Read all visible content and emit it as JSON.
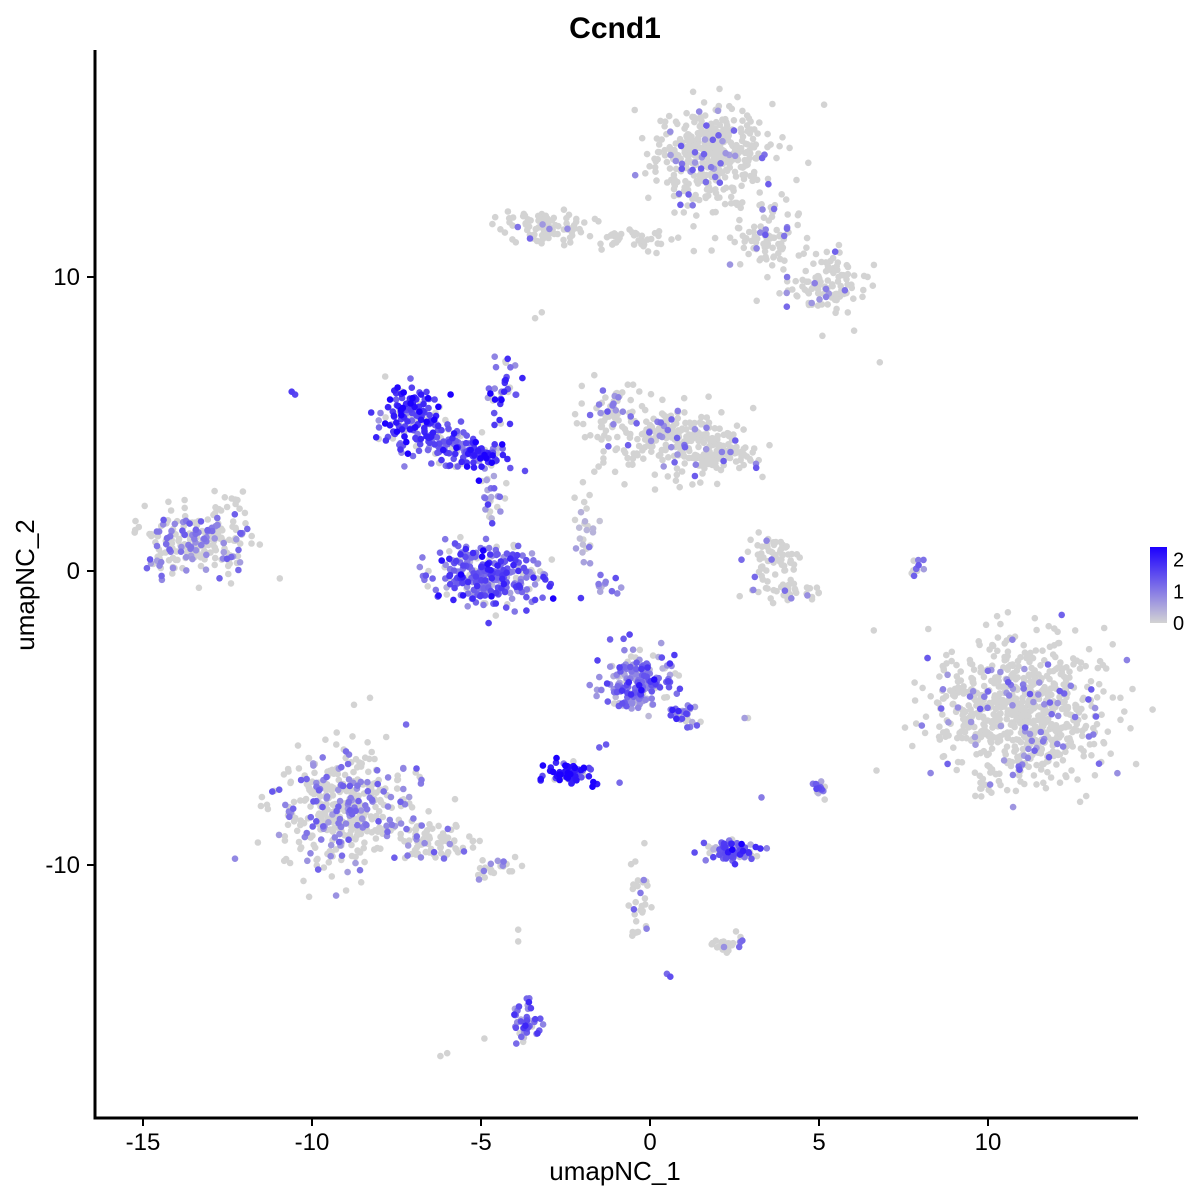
{
  "chart_data": {
    "type": "scatter",
    "title": "Ccnd1",
    "xlabel": "umapNC_1",
    "ylabel": "umapNC_2",
    "xlim": [
      -16.5,
      14.5
    ],
    "ylim": [
      -18.5,
      17.5
    ],
    "x_ticks": [
      -15,
      -10,
      -5,
      0,
      5,
      10
    ],
    "x_tick_labels": [
      "-15",
      "-10",
      "-5",
      "0",
      "5",
      "10"
    ],
    "y_ticks": [
      -10,
      0,
      10
    ],
    "y_tick_labels": [
      "-10",
      "0",
      "10"
    ],
    "grid": false,
    "legend": {
      "placement": "right",
      "type": "colorbar",
      "title": "",
      "min": 0,
      "max": 2.4,
      "ticks": [
        0,
        1,
        2
      ],
      "tick_labels": [
        "0",
        "1",
        "2"
      ]
    },
    "colors": {
      "low": "#d3d3d3",
      "high": "#1c00ff"
    },
    "point_count_note": "clusters sampled",
    "clusters": [
      {
        "cx": 1.8,
        "cy": 14.2,
        "rx": 1.6,
        "ry": 1.5,
        "n": 420,
        "expr": 0.03
      },
      {
        "cx": 3.3,
        "cy": 11.3,
        "rx": 1.2,
        "ry": 1.0,
        "n": 90,
        "expr": 0.03
      },
      {
        "cx": 5.2,
        "cy": 9.8,
        "rx": 1.1,
        "ry": 1.0,
        "n": 110,
        "expr": 0.04
      },
      {
        "cx": -3.1,
        "cy": 11.7,
        "rx": 1.2,
        "ry": 0.5,
        "n": 90,
        "expr": 0.02
      },
      {
        "cx": -0.5,
        "cy": 11.3,
        "rx": 1.1,
        "ry": 0.35,
        "n": 40,
        "expr": 0.01
      },
      {
        "cx": 0.6,
        "cy": 4.5,
        "rx": 1.8,
        "ry": 1.0,
        "n": 230,
        "expr": 0.04
      },
      {
        "cx": -1.2,
        "cy": 5.6,
        "rx": 0.7,
        "ry": 0.8,
        "n": 60,
        "expr": 0.05
      },
      {
        "cx": 2.2,
        "cy": 4.0,
        "rx": 1.1,
        "ry": 0.6,
        "n": 80,
        "expr": 0.03
      },
      {
        "cx": -7.1,
        "cy": 5.2,
        "rx": 0.9,
        "ry": 0.9,
        "n": 170,
        "expr": 1.7
      },
      {
        "cx": -5.1,
        "cy": 4.0,
        "rx": 0.9,
        "ry": 0.5,
        "n": 90,
        "expr": 1.6
      },
      {
        "cx": -6.2,
        "cy": 4.4,
        "rx": 0.8,
        "ry": 0.5,
        "n": 50,
        "expr": 1.3
      },
      {
        "cx": -4.6,
        "cy": -0.3,
        "rx": 1.6,
        "ry": 0.9,
        "n": 260,
        "expr": 1.3
      },
      {
        "cx": -5.6,
        "cy": 0.3,
        "rx": 0.5,
        "ry": 0.8,
        "n": 40,
        "expr": 1.0
      },
      {
        "cx": -4.7,
        "cy": 2.5,
        "rx": 0.35,
        "ry": 0.8,
        "n": 25,
        "expr": 0.9
      },
      {
        "cx": -13.4,
        "cy": 1.0,
        "rx": 1.4,
        "ry": 1.0,
        "n": 230,
        "expr": 0.12
      },
      {
        "cx": -0.4,
        "cy": -3.8,
        "rx": 0.9,
        "ry": 0.9,
        "n": 190,
        "expr": 1.0
      },
      {
        "cx": 0.9,
        "cy": -4.8,
        "rx": 0.45,
        "ry": 0.6,
        "n": 35,
        "expr": 0.9
      },
      {
        "cx": -2.4,
        "cy": -6.9,
        "rx": 0.55,
        "ry": 0.35,
        "n": 80,
        "expr": 1.9
      },
      {
        "cx": 2.4,
        "cy": -9.5,
        "rx": 0.7,
        "ry": 0.35,
        "n": 80,
        "expr": 1.3
      },
      {
        "cx": 10.9,
        "cy": -4.8,
        "rx": 2.3,
        "ry": 2.4,
        "n": 750,
        "expr": 0.04
      },
      {
        "cx": -9.1,
        "cy": -8.1,
        "rx": 1.7,
        "ry": 1.8,
        "n": 430,
        "expr": 0.12
      },
      {
        "cx": -6.5,
        "cy": -9.2,
        "rx": 1.3,
        "ry": 0.55,
        "n": 80,
        "expr": 0.08
      },
      {
        "cx": -4.6,
        "cy": -10.1,
        "rx": 0.7,
        "ry": 0.3,
        "n": 25,
        "expr": 0.1
      },
      {
        "cx": 3.7,
        "cy": 0.5,
        "rx": 0.8,
        "ry": 0.6,
        "n": 60,
        "expr": 0.02
      },
      {
        "cx": 4.2,
        "cy": -0.7,
        "rx": 0.9,
        "ry": 0.3,
        "n": 40,
        "expr": 0.02
      },
      {
        "cx": -3.7,
        "cy": -15.3,
        "rx": 0.35,
        "ry": 0.6,
        "n": 45,
        "expr": 1.1
      },
      {
        "cx": -0.3,
        "cy": -11.2,
        "rx": 0.3,
        "ry": 1.3,
        "n": 30,
        "expr": 0.02
      },
      {
        "cx": 2.2,
        "cy": -12.7,
        "rx": 0.5,
        "ry": 0.3,
        "n": 25,
        "expr": 0.02
      },
      {
        "cx": 5.0,
        "cy": -7.4,
        "rx": 0.2,
        "ry": 0.3,
        "n": 15,
        "expr": 1.1
      },
      {
        "cx": -4.4,
        "cy": 6.3,
        "rx": 0.5,
        "ry": 1.2,
        "n": 35,
        "expr": 1.5
      },
      {
        "cx": -1.9,
        "cy": 1.5,
        "rx": 0.35,
        "ry": 1.4,
        "n": 25,
        "expr": 0.5
      },
      {
        "cx": 7.9,
        "cy": 0.2,
        "rx": 0.15,
        "ry": 0.5,
        "n": 12,
        "expr": 0.3
      },
      {
        "cx": -1.2,
        "cy": -0.5,
        "rx": 0.5,
        "ry": 0.3,
        "n": 10,
        "expr": 1.0
      },
      {
        "cx": -12.3,
        "cy": 2.4,
        "rx": 0.5,
        "ry": 0.4,
        "n": 12,
        "expr": 0.05
      }
    ],
    "singletons": [
      {
        "x": -10.6,
        "y": 6.1,
        "expr": 1.7
      },
      {
        "x": -10.5,
        "y": 6.0,
        "expr": 1.6
      },
      {
        "x": -3.4,
        "y": 8.6,
        "expr": 0.0
      },
      {
        "x": -3.2,
        "y": 8.8,
        "expr": 0.0
      },
      {
        "x": 6.8,
        "y": 7.1,
        "expr": 0.0
      },
      {
        "x": 5.1,
        "y": 8.0,
        "expr": 0.0
      },
      {
        "x": -6.2,
        "y": -16.5,
        "expr": 0.0
      },
      {
        "x": -6.0,
        "y": -16.4,
        "expr": 0.0
      },
      {
        "x": -4.9,
        "y": -15.9,
        "expr": 0.0
      },
      {
        "x": 0.6,
        "y": -13.8,
        "expr": 1.5
      },
      {
        "x": 0.5,
        "y": -13.7,
        "expr": 1.2
      },
      {
        "x": 2.8,
        "y": -5.0,
        "expr": 0.6
      },
      {
        "x": 2.9,
        "y": -5.0,
        "expr": 0.0
      },
      {
        "x": 3.3,
        "y": -7.7,
        "expr": 1.0
      },
      {
        "x": -0.9,
        "y": -7.2,
        "expr": 1.2
      },
      {
        "x": -1.5,
        "y": -6.0,
        "expr": 1.3
      },
      {
        "x": -1.3,
        "y": -5.9,
        "expr": 1.4
      },
      {
        "x": -3.9,
        "y": -12.2,
        "expr": 0.0
      },
      {
        "x": -3.9,
        "y": -12.6,
        "expr": 0.0
      }
    ]
  }
}
